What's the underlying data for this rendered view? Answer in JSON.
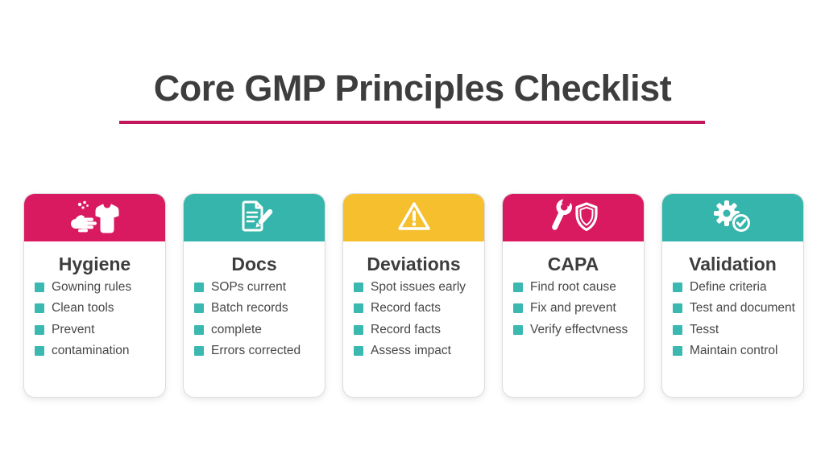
{
  "slide": {
    "title": "Core GMP Principles Checklist"
  },
  "colors": {
    "accent_pink": "#D91A60",
    "accent_teal": "#35B5AB",
    "accent_yellow": "#F5BF2D",
    "bullet_teal": "#3BB8B0",
    "title_underline": "#C2185B",
    "heading_text": "#3D3D3D"
  },
  "cards": [
    {
      "title": "Hygiene",
      "icon": "handwash-gown-icon",
      "header_color": "#D91A60",
      "items": [
        "Gowning rules",
        "Clean tools",
        "Prevent",
        "contamination"
      ]
    },
    {
      "title": "Docs",
      "icon": "document-edit-icon",
      "header_color": "#35B5AB",
      "items": [
        "SOPs current",
        "Batch records",
        "complete",
        "Errors corrected"
      ]
    },
    {
      "title": "Deviations",
      "icon": "warning-triangle-icon",
      "header_color": "#F5BF2D",
      "items": [
        "Spot issues early",
        "Record facts",
        "Record facts",
        "Assess impact"
      ]
    },
    {
      "title": "CAPA",
      "icon": "wrench-shield-icon",
      "header_color": "#D91A60",
      "items": [
        "Find root cause",
        "Fix and prevent",
        "Verify effectvness"
      ]
    },
    {
      "title": "Validation",
      "icon": "gear-check-icon",
      "header_color": "#35B5AB",
      "items": [
        "Define criteria",
        "Test and document",
        "Tesst",
        "Maintain control"
      ]
    }
  ]
}
